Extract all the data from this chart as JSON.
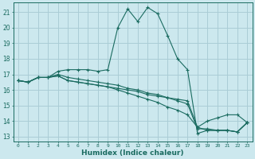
{
  "xlabel": "Humidex (Indice chaleur)",
  "bg_color": "#cce8ee",
  "grid_color": "#aacdd6",
  "line_color": "#1a6b60",
  "xlim": [
    -0.5,
    23.5
  ],
  "ylim": [
    12.7,
    21.6
  ],
  "xticks": [
    0,
    1,
    2,
    3,
    4,
    5,
    6,
    7,
    8,
    9,
    10,
    11,
    12,
    13,
    14,
    15,
    16,
    17,
    18,
    19,
    20,
    21,
    22,
    23
  ],
  "yticks": [
    13,
    14,
    15,
    16,
    17,
    18,
    19,
    20,
    21
  ],
  "line1_x": [
    0,
    1,
    2,
    3,
    4,
    5,
    6,
    7,
    8,
    9,
    10,
    11,
    12,
    13,
    14,
    15,
    16,
    17,
    18,
    19,
    20,
    21,
    22,
    23
  ],
  "line1_y": [
    16.6,
    16.5,
    16.8,
    16.8,
    17.2,
    17.3,
    17.3,
    17.3,
    17.2,
    17.3,
    20.0,
    21.2,
    20.4,
    21.3,
    20.9,
    19.5,
    18.0,
    17.3,
    13.2,
    13.4,
    13.4,
    13.4,
    13.3,
    13.9
  ],
  "line2_x": [
    0,
    1,
    2,
    3,
    4,
    5,
    6,
    7,
    8,
    9,
    10,
    11,
    12,
    13,
    14,
    15,
    16,
    17,
    18,
    19,
    20,
    21,
    22,
    23
  ],
  "line2_y": [
    16.6,
    16.5,
    16.8,
    16.8,
    16.9,
    16.6,
    16.5,
    16.4,
    16.3,
    16.2,
    16.1,
    16.0,
    15.9,
    15.7,
    15.6,
    15.5,
    15.4,
    15.3,
    13.6,
    13.4,
    13.4,
    13.4,
    13.3,
    13.9
  ],
  "line3_x": [
    0,
    1,
    2,
    3,
    4,
    5,
    6,
    7,
    8,
    9,
    10,
    11,
    12,
    13,
    14,
    15,
    16,
    17,
    18,
    19,
    20,
    21,
    22,
    23
  ],
  "line3_y": [
    16.6,
    16.5,
    16.8,
    16.8,
    16.9,
    16.6,
    16.5,
    16.4,
    16.3,
    16.2,
    16.0,
    15.8,
    15.6,
    15.4,
    15.2,
    14.9,
    14.7,
    14.4,
    13.6,
    14.0,
    14.2,
    14.4,
    14.4,
    13.9
  ],
  "line4_x": [
    0,
    1,
    2,
    3,
    4,
    5,
    6,
    7,
    8,
    9,
    10,
    11,
    12,
    13,
    14,
    15,
    16,
    17,
    18,
    19,
    20,
    21,
    22,
    23
  ],
  "line4_y": [
    16.6,
    16.5,
    16.8,
    16.8,
    17.0,
    16.8,
    16.7,
    16.6,
    16.5,
    16.4,
    16.3,
    16.1,
    16.0,
    15.8,
    15.7,
    15.5,
    15.3,
    15.1,
    13.5,
    13.5,
    13.4,
    13.4,
    13.3,
    13.9
  ]
}
